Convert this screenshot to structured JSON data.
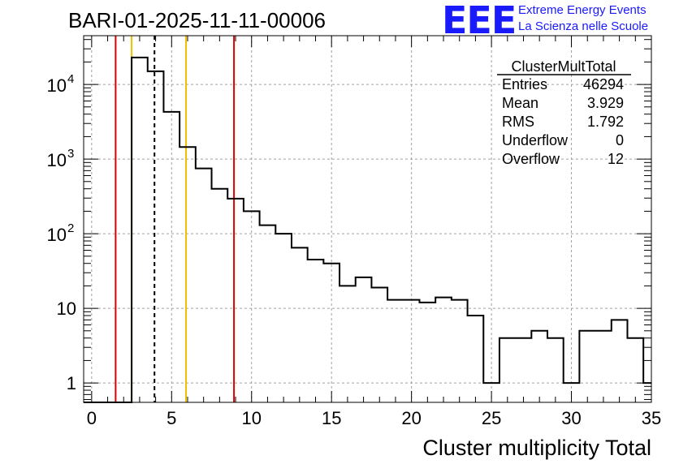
{
  "header": {
    "title": "BARI-01-2025-11-11-00006",
    "logo_text": "EEE",
    "logo_line1": "Extreme Energy Events",
    "logo_line2": "La Scienza nelle Scuole",
    "logo_color": "#1a1aff"
  },
  "stats": {
    "name": "ClusterMultTotal",
    "rows": [
      {
        "label": "Entries",
        "value": "46294"
      },
      {
        "label": "Mean",
        "value": "3.929"
      },
      {
        "label": "RMS",
        "value": "1.792"
      },
      {
        "label": "Underflow",
        "value": "0"
      },
      {
        "label": "Overflow",
        "value": "12"
      }
    ]
  },
  "chart_data": {
    "type": "histogram",
    "title": "BARI-01-2025-11-11-00006",
    "xlabel": "Cluster multiplicity Total",
    "ylabel": "",
    "y_scale": "log",
    "xlim": [
      -0.5,
      35
    ],
    "ylim": [
      0.55,
      45000
    ],
    "bin_edges_start": 0,
    "bin_width": 1,
    "bin_offset": -0.5,
    "values": [
      0,
      0,
      0,
      23000,
      15000,
      4300,
      1450,
      750,
      400,
      295,
      200,
      130,
      100,
      65,
      45,
      40,
      20,
      26,
      19,
      13,
      13,
      12,
      14,
      13,
      8,
      1,
      4,
      4,
      5,
      4,
      1,
      5,
      5,
      7,
      4,
      1
    ],
    "x_ticks": [
      "0",
      "5",
      "10",
      "15",
      "20",
      "25",
      "30",
      "35"
    ],
    "x_tick_values": [
      0,
      5,
      10,
      15,
      20,
      25,
      30,
      35
    ],
    "y_ticks": [
      {
        "value": 1,
        "label": "1",
        "exp": ""
      },
      {
        "value": 10,
        "label": "10",
        "exp": ""
      },
      {
        "value": 100,
        "label": "10",
        "exp": "2"
      },
      {
        "value": 1000,
        "label": "10",
        "exp": "3"
      },
      {
        "value": 10000,
        "label": "10",
        "exp": "4"
      }
    ],
    "vertical_lines": [
      {
        "x": 1.5,
        "color": "#e00000",
        "style": "solid",
        "name": "red-line-left"
      },
      {
        "x": 2.5,
        "color": "#f0c000",
        "style": "solid",
        "name": "yellow-line-left"
      },
      {
        "x": 3.929,
        "color": "#000000",
        "style": "dashed",
        "name": "mean-line"
      },
      {
        "x": 5.9,
        "color": "#f0c000",
        "style": "solid",
        "name": "yellow-line-right"
      },
      {
        "x": 8.9,
        "color": "#e00000",
        "style": "solid",
        "name": "red-line-right"
      }
    ],
    "grid": true,
    "legend": "top-right"
  }
}
